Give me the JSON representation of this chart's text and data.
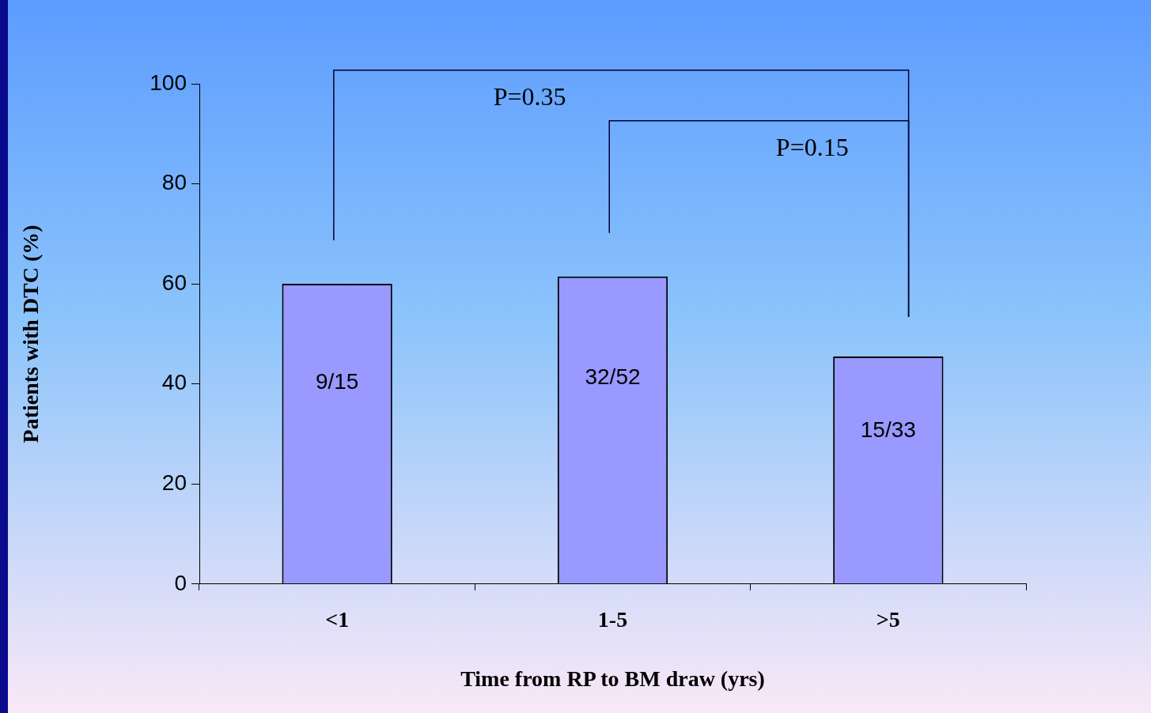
{
  "chart_data": {
    "type": "bar",
    "xlabel": "Time from RP to BM draw (yrs)",
    "ylabel": "Patients with DTC (%)",
    "categories": [
      "<1",
      "1-5",
      ">5"
    ],
    "values": [
      60,
      61.5,
      45.5
    ],
    "value_labels": [
      "9/15",
      "32/52",
      "15/33"
    ],
    "color": "#9999ff",
    "ylim": [
      0,
      100
    ],
    "yticks": [
      0,
      20,
      40,
      60,
      80,
      100
    ],
    "annotations": [
      "P=0.35",
      "P=0.15"
    ]
  }
}
